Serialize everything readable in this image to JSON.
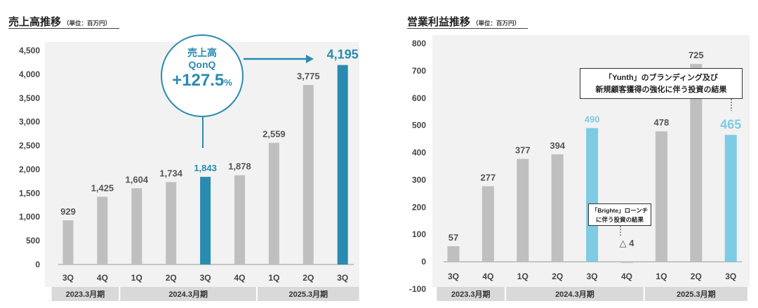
{
  "left_chart": {
    "title": "売上高推移",
    "unit": "（単位：百万円）",
    "callout": {
      "line1": "売上高",
      "line2": "QonQ",
      "value": "+127.5",
      "pct": "%"
    }
  },
  "right_chart": {
    "title": "営業利益推移",
    "unit": "（単位：百万円）",
    "note_main": [
      "「Yunth」のブランディング及び",
      "新規顧客獲得の強化に伴う投資の結果"
    ],
    "note_small": [
      "「Brighte」ローンチ",
      "に伴う投資の結果"
    ]
  },
  "colors": {
    "grey": "#bfbfbf",
    "dark_blue": "#2a8bb1",
    "light_blue": "#7ecbe4",
    "band": "#d9d9d9"
  },
  "chart_data": [
    {
      "type": "bar",
      "title": "売上高推移",
      "categories": [
        "3Q",
        "4Q",
        "1Q",
        "2Q",
        "3Q",
        "4Q",
        "1Q",
        "2Q",
        "3Q"
      ],
      "values": [
        929,
        1425,
        1604,
        1734,
        1843,
        1878,
        2559,
        3775,
        4195
      ],
      "labels": [
        "929",
        "1,425",
        "1,604",
        "1,734",
        "1,843",
        "1,878",
        "2,559",
        "3,775",
        "4,195"
      ],
      "highlight": [
        "none",
        "none",
        "none",
        "none",
        "dark",
        "none",
        "none",
        "none",
        "dark"
      ],
      "fiscal_years": [
        {
          "label": "2023.3月期",
          "count": 2
        },
        {
          "label": "2024.3月期",
          "count": 4
        },
        {
          "label": "2025.3月期",
          "count": 3
        }
      ],
      "ylim": [
        0,
        4500
      ],
      "yticks": [
        "0",
        "500",
        "1,000",
        "1,500",
        "2,000",
        "2,500",
        "3,000",
        "3,500",
        "4,000",
        "4,500"
      ]
    },
    {
      "type": "bar",
      "title": "営業利益推移",
      "categories": [
        "3Q",
        "4Q",
        "1Q",
        "2Q",
        "3Q",
        "4Q",
        "1Q",
        "2Q",
        "3Q"
      ],
      "values": [
        57,
        277,
        377,
        394,
        490,
        -4,
        478,
        725,
        465
      ],
      "labels": [
        "57",
        "277",
        "377",
        "394",
        "490",
        "△ 4",
        "478",
        "725",
        "465"
      ],
      "highlight": [
        "none",
        "none",
        "none",
        "none",
        "light",
        "none",
        "none",
        "none",
        "light"
      ],
      "fiscal_years": [
        {
          "label": "2023.3月期",
          "count": 2
        },
        {
          "label": "2024.3月期",
          "count": 4
        },
        {
          "label": "2025.3月期",
          "count": 3
        }
      ],
      "ylim": [
        -100,
        800
      ],
      "yticks": [
        "-100",
        "0",
        "100",
        "200",
        "300",
        "400",
        "500",
        "600",
        "700",
        "800"
      ]
    }
  ]
}
